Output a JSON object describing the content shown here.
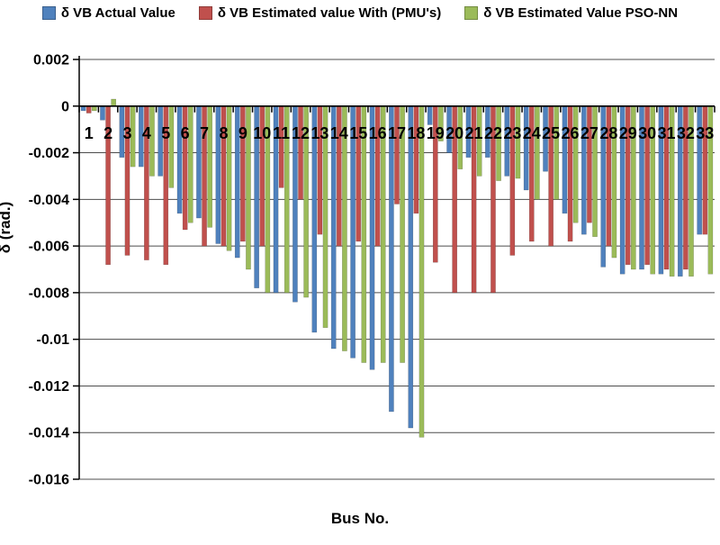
{
  "chart_data": {
    "type": "bar",
    "title": "",
    "xlabel": "Bus No.",
    "ylabel": "δ (rad.)",
    "ylim": [
      -0.016,
      0.002
    ],
    "grid": true,
    "legend_position": "top",
    "yticks": [
      {
        "value": 0.002,
        "label": "0.002"
      },
      {
        "value": 0,
        "label": "0"
      },
      {
        "value": -0.002,
        "label": "-0.002"
      },
      {
        "value": -0.004,
        "label": "-0.004"
      },
      {
        "value": -0.006,
        "label": "-0.006"
      },
      {
        "value": -0.008,
        "label": "-0.008"
      },
      {
        "value": -0.01,
        "label": "-0.01"
      },
      {
        "value": -0.012,
        "label": "-0.012"
      },
      {
        "value": -0.014,
        "label": "-0.014"
      },
      {
        "value": -0.016,
        "label": "-0.016"
      }
    ],
    "categories": [
      "1",
      "2",
      "3",
      "4",
      "5",
      "6",
      "7",
      "8",
      "9",
      "10",
      "11",
      "12",
      "13",
      "14",
      "15",
      "16",
      "17",
      "18",
      "19",
      "20",
      "21",
      "22",
      "23",
      "24",
      "25",
      "26",
      "27",
      "28",
      "29",
      "30",
      "31",
      "32",
      "33"
    ],
    "series": [
      {
        "name": "δ VB Actual Value",
        "color": "#4F81BD",
        "values": [
          -0.0002,
          -0.0006,
          -0.0022,
          -0.0026,
          -0.003,
          -0.0046,
          -0.0048,
          -0.0059,
          -0.0065,
          -0.0078,
          -0.008,
          -0.0084,
          -0.0097,
          -0.0104,
          -0.0108,
          -0.0113,
          -0.0131,
          -0.0138,
          -0.0008,
          -0.002,
          -0.0022,
          -0.0022,
          -0.003,
          -0.0036,
          -0.0028,
          -0.0046,
          -0.0055,
          -0.0069,
          -0.0072,
          -0.007,
          -0.0072,
          -0.0073,
          -0.0055
        ]
      },
      {
        "name": "δ VB Estimated value With (PMU's)",
        "color": "#C0504D",
        "values": [
          -0.0003,
          -0.0068,
          -0.0064,
          -0.0066,
          -0.0068,
          -0.0053,
          -0.006,
          -0.006,
          -0.0058,
          -0.006,
          -0.0035,
          -0.004,
          -0.0055,
          -0.006,
          -0.0058,
          -0.006,
          -0.0042,
          -0.0046,
          -0.0067,
          -0.008,
          -0.008,
          -0.008,
          -0.0064,
          -0.0058,
          -0.006,
          -0.0058,
          -0.005,
          -0.006,
          -0.0068,
          -0.0068,
          -0.007,
          -0.007,
          -0.0055
        ]
      },
      {
        "name": "δ VB Estimated Value PSO-NN",
        "color": "#9BBB59",
        "values": [
          -0.0002,
          0.0003,
          -0.0026,
          -0.003,
          -0.0035,
          -0.005,
          -0.0052,
          -0.0062,
          -0.007,
          -0.008,
          -0.008,
          -0.0082,
          -0.0095,
          -0.0105,
          -0.011,
          -0.011,
          -0.011,
          -0.0142,
          -0.0015,
          -0.0027,
          -0.003,
          -0.0032,
          -0.0031,
          -0.004,
          -0.004,
          -0.005,
          -0.0056,
          -0.0065,
          -0.007,
          -0.0072,
          -0.0073,
          -0.0073,
          -0.0072
        ]
      }
    ]
  }
}
